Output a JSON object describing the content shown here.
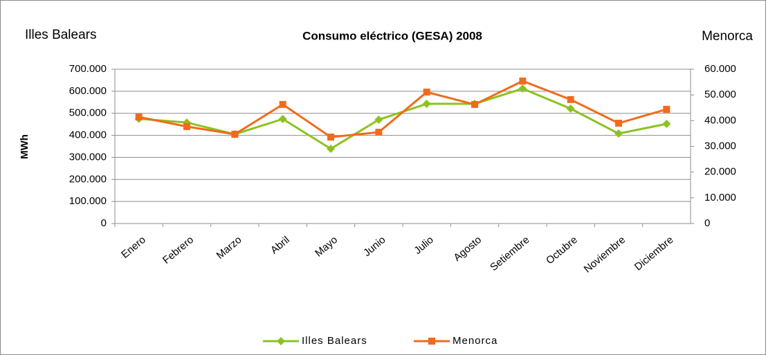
{
  "chart_data": {
    "type": "line",
    "title": "Consumo eléctrico (GESA) 2008",
    "left_title": "Illes Balears",
    "right_title": "Menorca",
    "ylabel": "MWh",
    "categories": [
      "Enero",
      "Febrero",
      "Marzo",
      "Abril",
      "Mayo",
      "Junio",
      "Julio",
      "Agosto",
      "Setiembre",
      "Octubre",
      "Noviembre",
      "Diciembre"
    ],
    "series": [
      {
        "name": "Illes Balears",
        "color": "#8cc21f",
        "marker": "diamond",
        "axis": "y",
        "values": [
          475000,
          458000,
          405000,
          474000,
          339000,
          471000,
          543000,
          543000,
          612000,
          521000,
          408000,
          452000
        ]
      },
      {
        "name": "Menorca",
        "color": "#f26a1b",
        "marker": "square",
        "axis": "y2",
        "values": [
          41400,
          37700,
          34700,
          46300,
          33600,
          35500,
          51100,
          46300,
          55400,
          48200,
          39000,
          44400
        ]
      }
    ],
    "ylim": [
      0,
      700000
    ],
    "yticks": [
      0,
      {
        "value": 100000,
        "label": "100.000"
      },
      {
        "value": 200000,
        "label": "200.000"
      },
      {
        "value": 300000,
        "label": "300.000"
      },
      {
        "value": 400000,
        "label": "400.000"
      },
      {
        "value": 500000,
        "label": "500.000"
      },
      {
        "value": 600000,
        "label": "600.000"
      },
      {
        "value": 700000,
        "label": "700.000"
      }
    ],
    "y2lim": [
      0,
      60000
    ],
    "y2ticks": [
      0,
      {
        "value": 10000,
        "label": "10.000"
      },
      {
        "value": 20000,
        "label": "20.000"
      },
      {
        "value": 30000,
        "label": "30.000"
      },
      {
        "value": 40000,
        "label": "40.000"
      },
      {
        "value": 50000,
        "label": "50.000"
      },
      {
        "value": 60000,
        "label": "60.000"
      }
    ],
    "grid": true,
    "legend": "bottom"
  }
}
